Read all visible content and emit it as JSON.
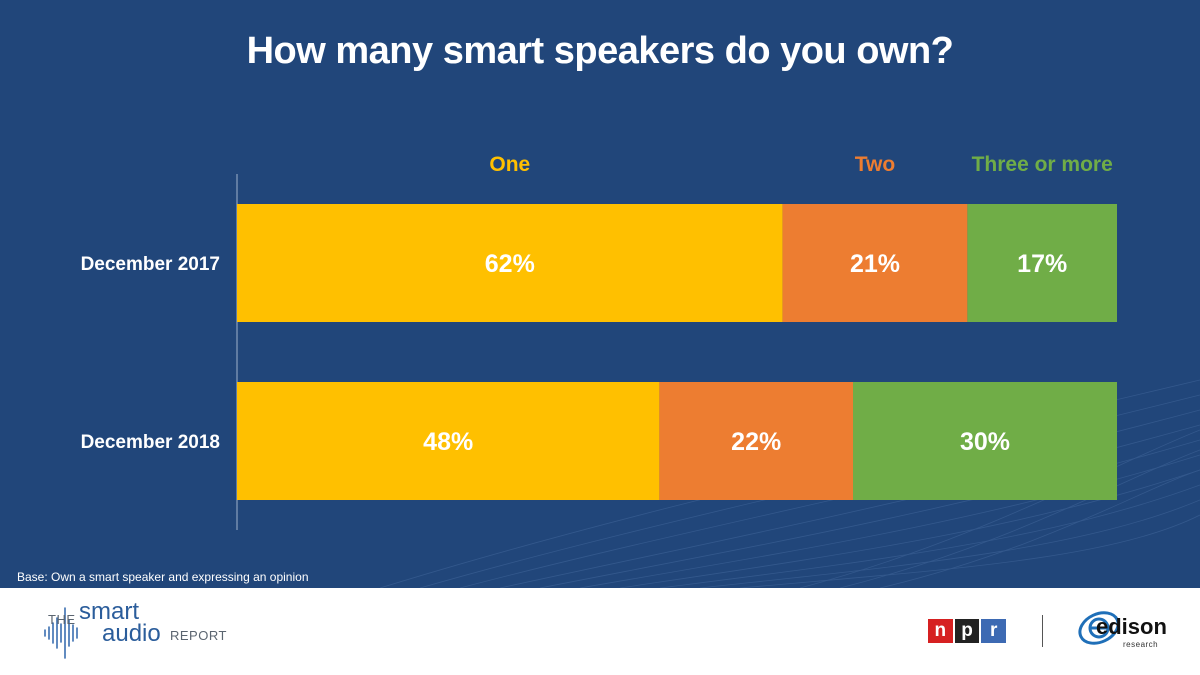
{
  "title": "How many smart speakers do you own?",
  "base_note": "Base: Own a smart speaker and expressing an opinion",
  "chart_data": {
    "type": "bar",
    "orientation": "horizontal",
    "stacked": true,
    "title": "How many smart speakers do you own?",
    "categories": [
      "December 2017",
      "December 2018"
    ],
    "series": [
      {
        "name": "One",
        "values": [
          62,
          48
        ],
        "color": "#ffc000",
        "label_color": "#ffc000"
      },
      {
        "name": "Two",
        "values": [
          21,
          22
        ],
        "color": "#ed7d31",
        "label_color": "#ed7d31"
      },
      {
        "name": "Three or more",
        "values": [
          17,
          30
        ],
        "color": "#70ad47",
        "label_color": "#70ad47"
      }
    ],
    "value_suffix": "%",
    "xlim": [
      0,
      100
    ],
    "legend_position": "top",
    "grid": false
  },
  "footer": {
    "report_the": "THE",
    "report_smart": "smart",
    "report_audio": "audio",
    "report_report": "REPORT",
    "npr_letters": [
      "n",
      "p",
      "r"
    ],
    "edison_word": "edison",
    "edison_sub": "research"
  }
}
